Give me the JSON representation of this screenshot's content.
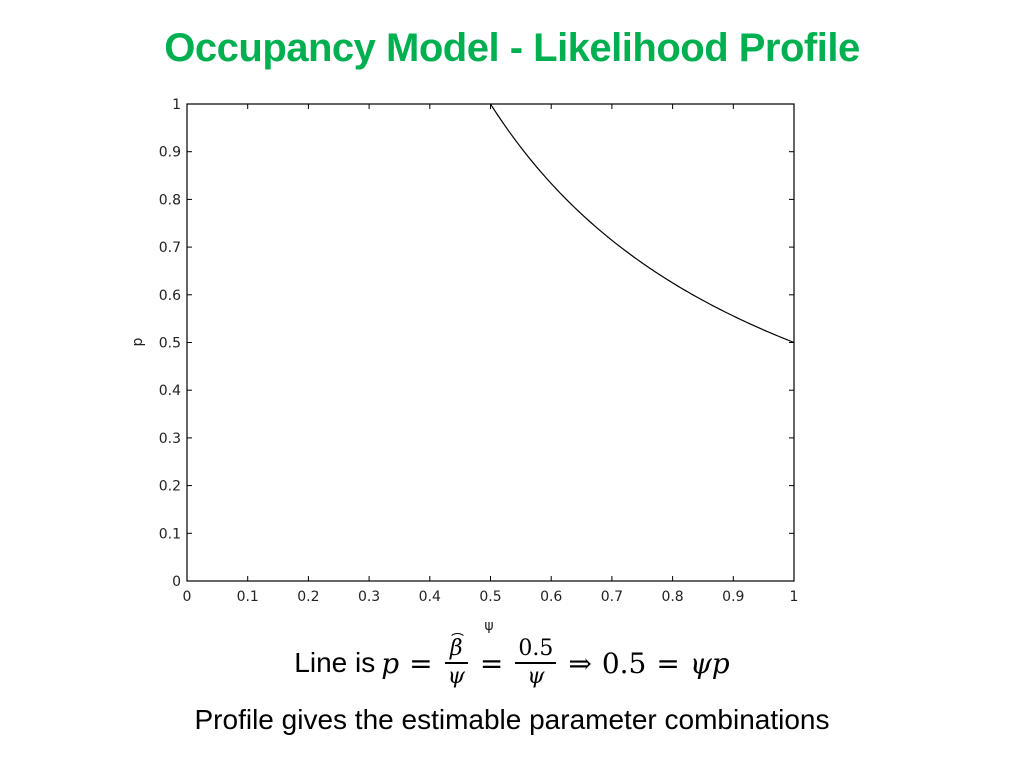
{
  "slide": {
    "title": "Occupancy Model - Likelihood Profile",
    "title_color": "#00b050",
    "equation": {
      "prefix": "Line is",
      "lhs": "p",
      "eq1": "=",
      "frac1_num": "β",
      "frac1_den": "ψ",
      "eq2": "=",
      "frac2_num": "0.5",
      "frac2_den": "ψ",
      "implies": "⇒",
      "rhs_const": "0.5",
      "eq3": "=",
      "rhs_expr": "ψp"
    },
    "caption": "Profile gives the estimable parameter combinations"
  },
  "chart_data": {
    "type": "line",
    "title": "",
    "xlabel": "ψ",
    "ylabel": "p",
    "xlim": [
      0,
      1
    ],
    "ylim": [
      0,
      1
    ],
    "grid": false,
    "legend": "none",
    "x_ticks": [
      "0",
      "0.1",
      "0.2",
      "0.3",
      "0.4",
      "0.5",
      "0.6",
      "0.7",
      "0.8",
      "0.9",
      "1"
    ],
    "y_ticks": [
      "0",
      "0.1",
      "0.2",
      "0.3",
      "0.4",
      "0.5",
      "0.6",
      "0.7",
      "0.8",
      "0.9",
      "1"
    ],
    "series": [
      {
        "name": "p = 0.5/ψ",
        "color": "#000000",
        "x": [
          0.5,
          0.55,
          0.6,
          0.65,
          0.7,
          0.75,
          0.8,
          0.85,
          0.9,
          0.95,
          1.0
        ],
        "y": [
          1.0,
          0.909,
          0.833,
          0.769,
          0.714,
          0.667,
          0.625,
          0.588,
          0.556,
          0.526,
          0.5
        ]
      }
    ]
  }
}
